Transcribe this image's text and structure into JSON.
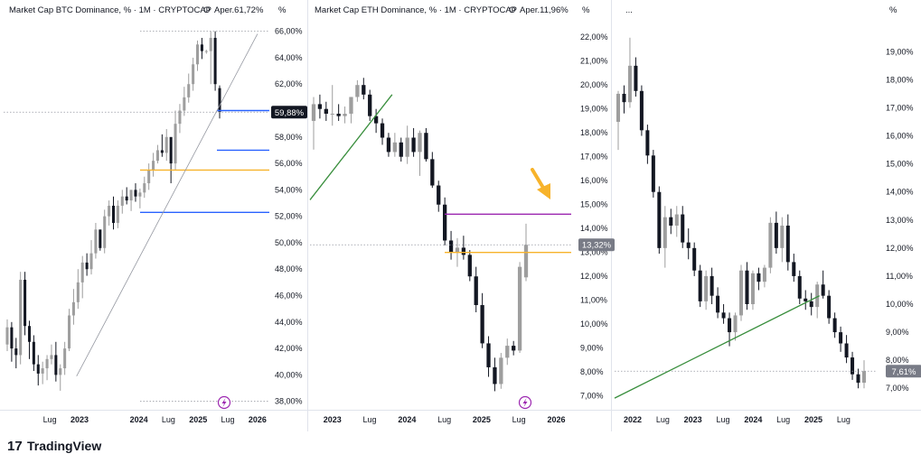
{
  "brand": {
    "name": "TradingView",
    "logo_glyph": "17",
    "color": "#131722"
  },
  "colors": {
    "up_candle": "#9e9e9e",
    "down_candle": "#131722",
    "axis_text": "#131722",
    "grid_dotted": "#9598a1",
    "blue_level": "#2962ff",
    "orange_level": "#f7b32b",
    "purple_level": "#9c27b0",
    "green_trend": "#388e3c",
    "gray_trend": "#9598a1",
    "last_dark_bg": "#131722",
    "last_gray_bg": "#787b86",
    "lightning": "#9c27b0"
  },
  "chart_data": [
    {
      "type": "candlestick",
      "title": "Market Cap BTC Dominance, % · 1M · CRYPTOCAP",
      "ohlc_label": "O",
      "ohlc_value": "Aper.61,72%",
      "unit_label": "%",
      "ylim": [
        37.5,
        67
      ],
      "y_ticks": [
        "66,00%",
        "64,00%",
        "62,00%",
        "60,00%",
        "58,00%",
        "56,00%",
        "54,00%",
        "52,00%",
        "50,00%",
        "48,00%",
        "46,00%",
        "44,00%",
        "42,00%",
        "40,00%",
        "38,00%"
      ],
      "y_tick_values": [
        66,
        64,
        62,
        60,
        58,
        56,
        54,
        52,
        50,
        48,
        46,
        44,
        42,
        40,
        38
      ],
      "x_labels": [
        "Lug",
        "2023",
        "2024",
        "Lug",
        "2025",
        "Lug",
        "2026"
      ],
      "x_label_positions": [
        2022.5,
        2023,
        2024,
        2024.5,
        2025,
        2025.5,
        2026
      ],
      "x_range": [
        2021.72,
        2026.2
      ],
      "last_value_label": "59,88%",
      "last_value": 59.88,
      "candles": [
        [
          42.3,
          44.2,
          41.8,
          43.6
        ],
        [
          43.6,
          44.0,
          41.0,
          42.0
        ],
        [
          42.0,
          42.8,
          40.5,
          41.5
        ],
        [
          41.5,
          47.8,
          40.8,
          47.2
        ],
        [
          47.2,
          47.8,
          43.0,
          43.7
        ],
        [
          43.7,
          44.1,
          41.2,
          42.5
        ],
        [
          42.5,
          43.0,
          40.3,
          40.8
        ],
        [
          40.8,
          41.5,
          39.2,
          40.1
        ],
        [
          40.1,
          41.0,
          39.3,
          40.5
        ],
        [
          40.5,
          41.5,
          39.6,
          41.2
        ],
        [
          41.2,
          42.3,
          40.8,
          41.5
        ],
        [
          41.5,
          42.5,
          39.5,
          40.0
        ],
        [
          40.0,
          40.8,
          38.8,
          40.5
        ],
        [
          40.5,
          42.5,
          40.0,
          42.0
        ],
        [
          42.0,
          45.0,
          41.8,
          44.5
        ],
        [
          44.5,
          46.5,
          43.8,
          45.5
        ],
        [
          45.5,
          48.0,
          45.0,
          47.0
        ],
        [
          47.0,
          49.0,
          45.8,
          48.5
        ],
        [
          48.5,
          49.2,
          47.5,
          48.0
        ],
        [
          48.0,
          50.2,
          47.6,
          49.2
        ],
        [
          49.2,
          51.5,
          48.8,
          51.0
        ],
        [
          51.0,
          50.9,
          49.4,
          49.6
        ],
        [
          49.6,
          52.5,
          49.2,
          52.0
        ],
        [
          52.0,
          53.2,
          51.3,
          52.8
        ],
        [
          52.8,
          53.5,
          51.0,
          51.5
        ],
        [
          51.5,
          53.2,
          51.1,
          52.8
        ],
        [
          52.8,
          54.0,
          52.2,
          53.5
        ],
        [
          53.5,
          54.2,
          52.9,
          53.2
        ],
        [
          53.2,
          54.0,
          52.4,
          54.0
        ],
        [
          54.0,
          54.5,
          53.1,
          53.5
        ],
        [
          53.5,
          54.1,
          52.6,
          53.8
        ],
        [
          53.8,
          55.0,
          53.4,
          54.5
        ],
        [
          54.5,
          56.0,
          54.0,
          55.5
        ],
        [
          55.5,
          56.8,
          55.0,
          56.2
        ],
        [
          56.2,
          57.4,
          56.0,
          57.0
        ],
        [
          57.0,
          58.2,
          56.5,
          56.8
        ],
        [
          56.8,
          58.6,
          56.2,
          58.0
        ],
        [
          58.0,
          57.9,
          54.5,
          56.0
        ],
        [
          56.0,
          60.0,
          55.5,
          59.0
        ],
        [
          59.0,
          60.5,
          58.3,
          60.0
        ],
        [
          60.0,
          61.8,
          59.6,
          61.0
        ],
        [
          61.0,
          62.8,
          60.6,
          62.0
        ],
        [
          62.0,
          64.0,
          61.5,
          63.5
        ],
        [
          63.5,
          65.3,
          63.0,
          65.0
        ],
        [
          65.0,
          65.5,
          63.9,
          64.5
        ],
        [
          64.5,
          64.6,
          64.3,
          64.5
        ],
        [
          64.5,
          66.0,
          62.0,
          65.5
        ],
        [
          65.5,
          66.0,
          61.5,
          62.0
        ],
        [
          61.7,
          61.9,
          59.4,
          59.88
        ]
      ],
      "levels": [
        {
          "type": "dotted",
          "value": 66.0,
          "color_key": "gray"
        },
        {
          "type": "blue",
          "value": 60.0
        },
        {
          "type": "blue",
          "value": 57.0
        },
        {
          "type": "orange",
          "value": 55.5
        },
        {
          "type": "blue",
          "value": 52.3
        },
        {
          "type": "dotted",
          "value": 38.0,
          "color_key": "gray"
        }
      ],
      "trendline": {
        "from": [
          2022.95,
          39.9
        ],
        "to": [
          2026.0,
          65.8
        ]
      }
    },
    {
      "type": "candlestick",
      "title": "Market Cap ETH Dominance, % · 1M · CRYPTOCAP",
      "ohlc_label": "O",
      "ohlc_value": "Aper.11,96%",
      "unit_label": "%",
      "ylim": [
        6.5,
        22.8
      ],
      "y_ticks": [
        "22,00%",
        "21,00%",
        "20,00%",
        "19,00%",
        "18,00%",
        "17,00%",
        "16,00%",
        "15,00%",
        "14,00%",
        "13,00%",
        "12,00%",
        "11,00%",
        "10,00%",
        "9,00%",
        "8,00%",
        "7,00%"
      ],
      "y_tick_values": [
        22,
        21,
        20,
        19,
        18,
        17,
        16,
        15,
        14,
        13,
        12,
        11,
        10,
        9,
        8,
        7
      ],
      "x_labels": [
        "2023",
        "Lug",
        "2024",
        "Lug",
        "2025",
        "Lug",
        "2026"
      ],
      "x_label_positions": [
        2023,
        2023.5,
        2024,
        2024.5,
        2025,
        2025.5,
        2026
      ],
      "x_range": [
        2022.7,
        2026.2
      ],
      "last_value_label": "13,32%",
      "last_value": 13.32,
      "candles": [
        [
          18.5,
          19.5,
          17.3,
          19.2
        ],
        [
          19.2,
          19.6,
          18.6,
          19.0
        ],
        [
          19.0,
          19.3,
          18.5,
          18.8
        ],
        [
          18.8,
          20.0,
          18.3,
          18.8
        ],
        [
          18.8,
          19.2,
          18.5,
          18.7
        ],
        [
          18.7,
          19.1,
          18.4,
          18.8
        ],
        [
          18.8,
          19.5,
          18.4,
          19.5
        ],
        [
          19.5,
          20.2,
          19.3,
          20.0
        ],
        [
          20.0,
          20.3,
          19.4,
          19.6
        ],
        [
          19.6,
          19.8,
          18.5,
          18.7
        ],
        [
          18.7,
          19.0,
          18.0,
          18.4
        ],
        [
          18.4,
          18.6,
          17.5,
          17.8
        ],
        [
          17.8,
          18.0,
          17.0,
          17.2
        ],
        [
          17.2,
          18.0,
          17.0,
          17.6
        ],
        [
          17.6,
          17.8,
          16.8,
          17.0
        ],
        [
          17.0,
          18.3,
          16.7,
          17.8
        ],
        [
          17.8,
          18.2,
          17.0,
          17.2
        ],
        [
          17.2,
          18.1,
          16.2,
          18.0
        ],
        [
          18.0,
          18.2,
          16.8,
          16.9
        ],
        [
          16.9,
          17.2,
          15.7,
          15.8
        ],
        [
          15.8,
          16.0,
          14.7,
          15.0
        ],
        [
          15.0,
          15.3,
          13.3,
          13.5
        ],
        [
          13.5,
          13.9,
          12.7,
          13.0
        ],
        [
          13.0,
          13.6,
          12.4,
          13.2
        ],
        [
          13.2,
          13.7,
          12.7,
          12.9
        ],
        [
          12.9,
          13.1,
          11.8,
          12.0
        ],
        [
          12.0,
          12.4,
          10.5,
          10.8
        ],
        [
          10.8,
          11.3,
          9.0,
          9.2
        ],
        [
          9.2,
          9.5,
          7.8,
          8.2
        ],
        [
          8.2,
          8.6,
          7.2,
          7.5
        ],
        [
          7.5,
          8.8,
          7.3,
          8.6
        ],
        [
          8.6,
          9.4,
          8.3,
          9.1
        ],
        [
          9.1,
          9.3,
          8.7,
          8.9
        ],
        [
          8.9,
          12.6,
          8.8,
          12.4
        ],
        [
          11.96,
          14.2,
          11.8,
          13.32
        ]
      ],
      "levels": [
        {
          "type": "purple",
          "value": 14.6
        },
        {
          "type": "orange",
          "value": 13.0
        },
        {
          "type": "dotted",
          "value": 13.32,
          "color_key": "gray"
        }
      ],
      "trendline": {
        "from": [
          2022.7,
          15.2
        ],
        "to": [
          2023.8,
          19.6
        ]
      },
      "annotation": "arrow-down-right"
    },
    {
      "type": "candlestick",
      "title": "",
      "ohlc_label": "...",
      "ohlc_value": "",
      "unit_label": "%",
      "ylim": [
        6.3,
        20.2
      ],
      "y_ticks": [
        "19,00%",
        "18,00%",
        "17,00%",
        "16,00%",
        "15,00%",
        "14,00%",
        "13,00%",
        "12,00%",
        "11,00%",
        "10,00%",
        "9,00%",
        "8,00%",
        "7,00%"
      ],
      "y_tick_values": [
        19,
        18,
        17,
        16,
        15,
        14,
        13,
        12,
        11,
        10,
        9,
        8,
        7
      ],
      "x_labels": [
        "2022",
        "Lug",
        "2023",
        "Lug",
        "2024",
        "Lug",
        "2025",
        "Lug"
      ],
      "x_label_positions": [
        2022,
        2022.5,
        2023,
        2023.5,
        2024,
        2024.5,
        2025,
        2025.5
      ],
      "x_range": [
        2021.7,
        2026.05
      ],
      "last_value_label": "7,61%",
      "last_value": 7.61,
      "candles": [
        [
          16.5,
          17.6,
          15.5,
          17.5
        ],
        [
          17.5,
          17.8,
          16.8,
          17.2
        ],
        [
          17.2,
          19.5,
          17.0,
          18.5
        ],
        [
          18.5,
          18.8,
          17.4,
          17.6
        ],
        [
          17.6,
          17.8,
          16.0,
          16.2
        ],
        [
          16.2,
          16.4,
          15.0,
          15.3
        ],
        [
          15.3,
          15.5,
          13.8,
          14.0
        ],
        [
          14.0,
          14.2,
          11.8,
          12.0
        ],
        [
          12.0,
          13.5,
          11.3,
          13.1
        ],
        [
          13.1,
          13.4,
          12.5,
          12.8
        ],
        [
          12.8,
          13.5,
          12.4,
          13.2
        ],
        [
          13.2,
          13.5,
          12.0,
          12.2
        ],
        [
          12.2,
          12.7,
          11.6,
          12.0
        ],
        [
          12.0,
          12.2,
          11.0,
          11.2
        ],
        [
          11.2,
          11.4,
          9.9,
          10.1
        ],
        [
          10.1,
          11.2,
          9.8,
          11.0
        ],
        [
          11.0,
          11.3,
          10.0,
          10.3
        ],
        [
          10.3,
          10.6,
          9.5,
          9.7
        ],
        [
          9.7,
          10.0,
          9.3,
          9.5
        ],
        [
          9.5,
          9.7,
          8.5,
          9.0
        ],
        [
          9.0,
          9.7,
          8.7,
          9.6
        ],
        [
          9.6,
          11.4,
          9.4,
          11.2
        ],
        [
          11.2,
          11.5,
          9.8,
          10.0
        ],
        [
          10.0,
          11.2,
          9.8,
          11.1
        ],
        [
          11.1,
          11.3,
          10.5,
          10.8
        ],
        [
          10.8,
          11.4,
          10.6,
          11.3
        ],
        [
          11.3,
          13.1,
          11.1,
          12.9
        ],
        [
          12.9,
          13.3,
          11.8,
          12.0
        ],
        [
          12.0,
          13.1,
          11.5,
          12.8
        ],
        [
          12.8,
          13.2,
          11.2,
          11.5
        ],
        [
          11.5,
          11.8,
          10.8,
          11.0
        ],
        [
          11.0,
          11.2,
          10.0,
          10.2
        ],
        [
          10.2,
          10.5,
          9.8,
          10.1
        ],
        [
          10.1,
          10.4,
          9.6,
          9.9
        ],
        [
          9.9,
          10.8,
          9.5,
          10.7
        ],
        [
          10.7,
          11.2,
          10.2,
          10.3
        ],
        [
          10.3,
          10.5,
          9.3,
          9.5
        ],
        [
          9.5,
          9.7,
          8.8,
          9.0
        ],
        [
          9.0,
          9.2,
          8.3,
          8.6
        ],
        [
          8.6,
          8.9,
          7.9,
          8.1
        ],
        [
          8.1,
          8.3,
          7.3,
          7.5
        ],
        [
          7.5,
          7.7,
          7.0,
          7.2
        ],
        [
          7.2,
          8.0,
          7.0,
          7.61
        ]
      ],
      "levels": [
        {
          "type": "dotted",
          "value": 7.61,
          "color_key": "gray"
        }
      ],
      "trendline": {
        "from": [
          2021.7,
          6.65
        ],
        "to": [
          2025.1,
          10.3
        ]
      }
    }
  ]
}
